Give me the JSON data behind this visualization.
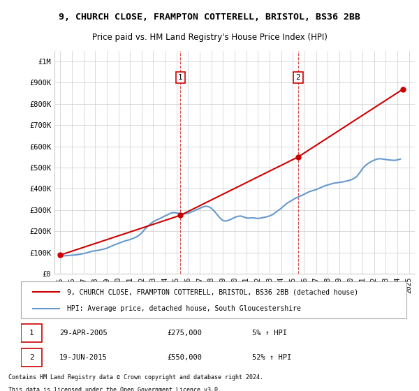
{
  "title": "9, CHURCH CLOSE, FRAMPTON COTTERELL, BRISTOL, BS36 2BB",
  "subtitle": "Price paid vs. HM Land Registry's House Price Index (HPI)",
  "legend_line1": "9, CHURCH CLOSE, FRAMPTON COTTERELL, BRISTOL, BS36 2BB (detached house)",
  "legend_line2": "HPI: Average price, detached house, South Gloucestershire",
  "annotation1": {
    "label": "1",
    "date_str": "29-APR-2005",
    "price_str": "£275,000",
    "hpi_str": "5% ↑ HPI",
    "year": 2005.33,
    "value": 275000
  },
  "annotation2": {
    "label": "2",
    "date_str": "19-JUN-2015",
    "price_str": "£550,000",
    "hpi_str": "52% ↑ HPI",
    "year": 2015.46,
    "value": 550000
  },
  "footnote1": "Contains HM Land Registry data © Crown copyright and database right 2024.",
  "footnote2": "This data is licensed under the Open Government Licence v3.0.",
  "sale_color": "#cc0000",
  "hpi_color": "#6699cc",
  "ylim": [
    0,
    1050000
  ],
  "xlim_start": 1994.5,
  "xlim_end": 2025.5,
  "hpi_data": {
    "years": [
      1995,
      1995.25,
      1995.5,
      1995.75,
      1996,
      1996.25,
      1996.5,
      1996.75,
      1997,
      1997.25,
      1997.5,
      1997.75,
      1998,
      1998.25,
      1998.5,
      1998.75,
      1999,
      1999.25,
      1999.5,
      1999.75,
      2000,
      2000.25,
      2000.5,
      2000.75,
      2001,
      2001.25,
      2001.5,
      2001.75,
      2002,
      2002.25,
      2002.5,
      2002.75,
      2003,
      2003.25,
      2003.5,
      2003.75,
      2004,
      2004.25,
      2004.5,
      2004.75,
      2005,
      2005.25,
      2005.5,
      2005.75,
      2006,
      2006.25,
      2006.5,
      2006.75,
      2007,
      2007.25,
      2007.5,
      2007.75,
      2008,
      2008.25,
      2008.5,
      2008.75,
      2009,
      2009.25,
      2009.5,
      2009.75,
      2010,
      2010.25,
      2010.5,
      2010.75,
      2011,
      2011.25,
      2011.5,
      2011.75,
      2012,
      2012.25,
      2012.5,
      2012.75,
      2013,
      2013.25,
      2013.5,
      2013.75,
      2014,
      2014.25,
      2014.5,
      2014.75,
      2015,
      2015.25,
      2015.5,
      2015.75,
      2016,
      2016.25,
      2016.5,
      2016.75,
      2017,
      2017.25,
      2017.5,
      2017.75,
      2018,
      2018.25,
      2018.5,
      2018.75,
      2019,
      2019.25,
      2019.5,
      2019.75,
      2020,
      2020.25,
      2020.5,
      2020.75,
      2021,
      2021.25,
      2021.5,
      2021.75,
      2022,
      2022.25,
      2022.5,
      2022.75,
      2023,
      2023.25,
      2023.5,
      2023.75,
      2024,
      2024.25
    ],
    "values": [
      85000,
      84000,
      85000,
      86000,
      87000,
      88000,
      90000,
      92000,
      95000,
      98000,
      102000,
      106000,
      108000,
      110000,
      113000,
      116000,
      120000,
      126000,
      132000,
      138000,
      143000,
      148000,
      153000,
      157000,
      161000,
      166000,
      172000,
      180000,
      192000,
      208000,
      222000,
      235000,
      245000,
      252000,
      258000,
      265000,
      272000,
      278000,
      285000,
      288000,
      286000,
      284000,
      283000,
      282000,
      285000,
      290000,
      296000,
      302000,
      308000,
      314000,
      318000,
      316000,
      308000,
      295000,
      278000,
      262000,
      250000,
      248000,
      252000,
      258000,
      265000,
      270000,
      272000,
      268000,
      263000,
      262000,
      263000,
      262000,
      260000,
      262000,
      265000,
      268000,
      272000,
      278000,
      288000,
      298000,
      308000,
      320000,
      332000,
      340000,
      348000,
      356000,
      362000,
      368000,
      375000,
      382000,
      388000,
      392000,
      396000,
      402000,
      408000,
      414000,
      418000,
      422000,
      426000,
      428000,
      430000,
      432000,
      435000,
      438000,
      442000,
      448000,
      458000,
      475000,
      495000,
      510000,
      520000,
      528000,
      535000,
      540000,
      542000,
      540000,
      538000,
      536000,
      535000,
      534000,
      536000,
      540000
    ]
  },
  "sale_data": {
    "years": [
      1995.0,
      2005.33,
      2015.46,
      2024.5
    ],
    "values": [
      88000,
      275000,
      550000,
      870000
    ]
  },
  "yticks": [
    0,
    100000,
    200000,
    300000,
    400000,
    500000,
    600000,
    700000,
    800000,
    900000,
    1000000
  ],
  "ytick_labels": [
    "£0",
    "£100K",
    "£200K",
    "£300K",
    "£400K",
    "£500K",
    "£600K",
    "£700K",
    "£800K",
    "£900K",
    "£1M"
  ],
  "xticks": [
    1995,
    1996,
    1997,
    1998,
    1999,
    2000,
    2001,
    2002,
    2003,
    2004,
    2005,
    2006,
    2007,
    2008,
    2009,
    2010,
    2011,
    2012,
    2013,
    2014,
    2015,
    2016,
    2017,
    2018,
    2019,
    2020,
    2021,
    2022,
    2023,
    2024,
    2025
  ]
}
